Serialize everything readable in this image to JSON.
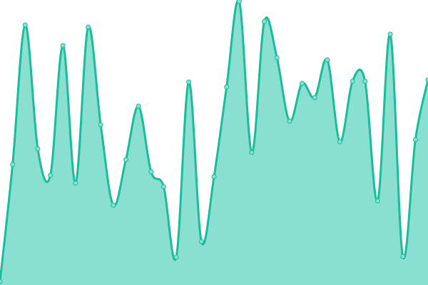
{
  "chart_data": {
    "type": "area",
    "curve": "smooth",
    "axes_visible": false,
    "grid": false,
    "ylim": [
      0,
      400
    ],
    "series": [
      {
        "values": [
          5,
          169,
          365,
          191,
          154,
          336,
          143,
          362,
          225,
          112,
          176,
          251,
          159,
          138,
          39,
          285,
          61,
          152,
          278,
          398,
          186,
          370,
          319,
          230,
          283,
          263,
          316,
          201,
          286,
          286,
          118,
          352,
          40,
          204,
          288
        ]
      }
    ],
    "colors": {
      "line": "#1abc9c",
      "fill": "#8ae0d0",
      "marker_fill": "#8ae0d0",
      "marker_stroke": "#1abc9c"
    }
  }
}
